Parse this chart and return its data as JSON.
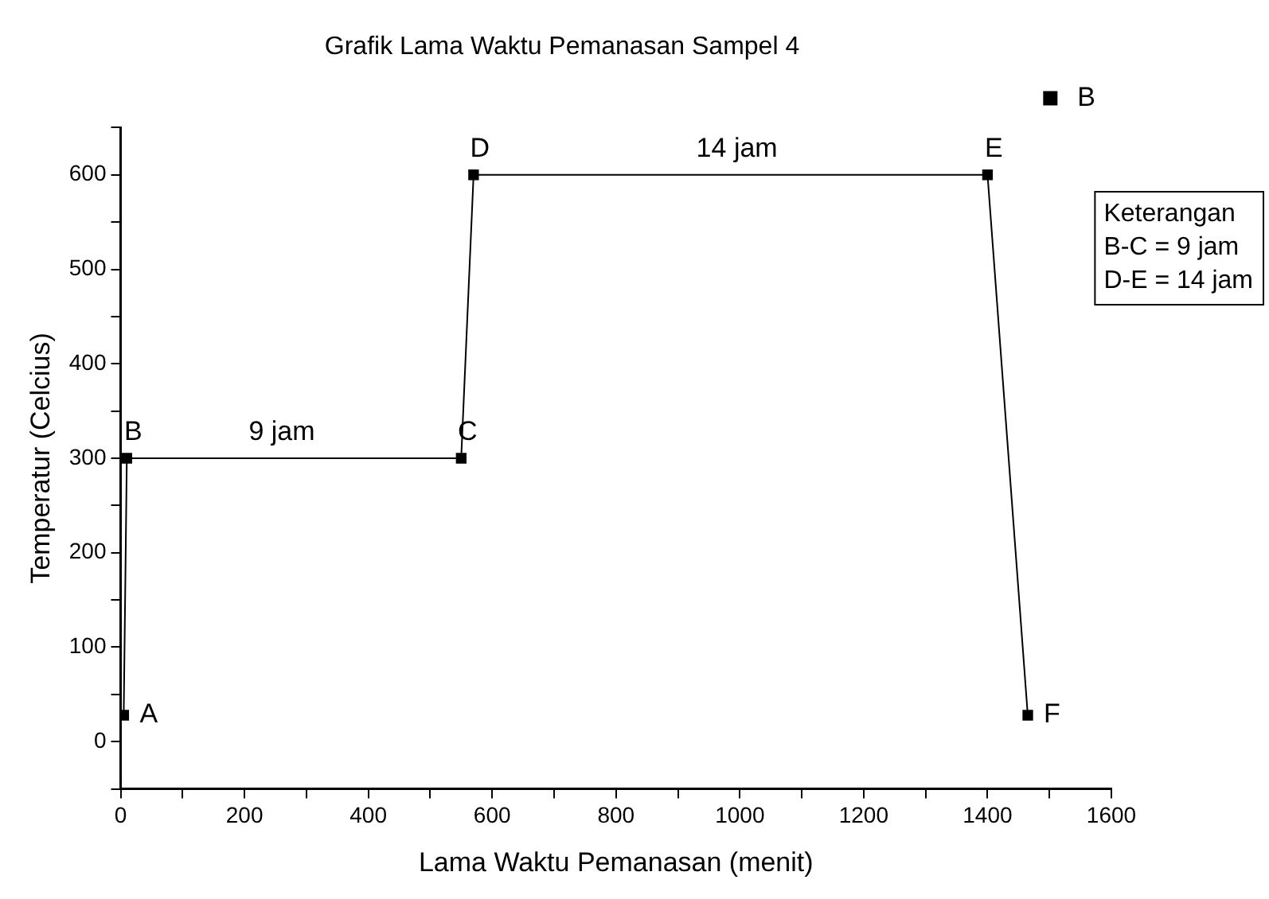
{
  "chart_data": {
    "type": "line",
    "title": "Grafik Lama Waktu Pemanasan Sampel 4",
    "xlabel": "Lama Waktu Pemanasan (menit)",
    "ylabel": "Temperatur (Celcius)",
    "x": [
      5,
      10,
      550,
      570,
      1400,
      1465
    ],
    "series": [
      {
        "name": "B",
        "color": "#000000",
        "values": [
          28,
          300,
          300,
          600,
          600,
          28
        ]
      }
    ],
    "xlim": [
      0,
      1600
    ],
    "xticks": [
      0,
      {
        "value": 100,
        "label": null
      },
      200,
      {
        "value": 300,
        "label": null
      },
      400,
      {
        "value": 500,
        "label": null
      },
      600,
      {
        "value": 700,
        "label": null
      },
      800,
      {
        "value": 900,
        "label": null
      },
      1000,
      {
        "value": 1100,
        "label": null
      },
      1200,
      {
        "value": 1300,
        "label": null
      },
      1400,
      {
        "value": 1500,
        "label": null
      },
      1600
    ],
    "ylim": [
      -50,
      650
    ],
    "yticks": [
      {
        "value": -50,
        "label": null
      },
      0,
      {
        "value": 50,
        "label": null
      },
      100,
      {
        "value": 150,
        "label": null
      },
      200,
      {
        "value": 250,
        "label": null
      },
      300,
      {
        "value": 350,
        "label": null
      },
      400,
      {
        "value": 450,
        "label": null
      },
      500,
      {
        "value": 550,
        "label": null
      },
      600,
      {
        "value": 650,
        "label": null
      }
    ],
    "marker": "square",
    "line_style": "solid",
    "grid": false,
    "legend": "top right",
    "annotations": [
      {
        "text": "A",
        "x": 5,
        "y": 28
      },
      {
        "text": "B",
        "x": 10,
        "y": 300
      },
      {
        "text": "C",
        "x": 550,
        "y": 300
      },
      {
        "text": "D",
        "x": 570,
        "y": 600
      },
      {
        "text": "E",
        "x": 1400,
        "y": 600
      },
      {
        "text": "F",
        "x": 1465,
        "y": 28
      },
      {
        "text": "9 jam",
        "x": 250,
        "y": 300
      },
      {
        "text": "14 jam",
        "x": 985,
        "y": 600
      },
      "Keterangan",
      "B-C = 9 jam",
      "D-E = 14 jam"
    ]
  }
}
